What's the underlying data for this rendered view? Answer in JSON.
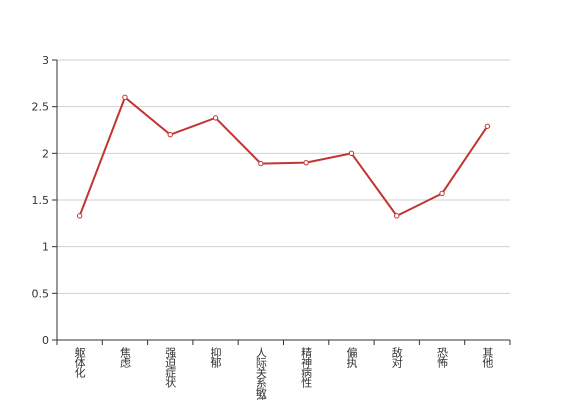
{
  "chart_data": {
    "type": "line",
    "categories": [
      "躯体化",
      "焦虑",
      "强迫症状",
      "抑郁",
      "人际关系敏感",
      "精神病性",
      "偏执",
      "敌对",
      "恐怖",
      "其他"
    ],
    "values": [
      1.33,
      2.6,
      2.2,
      2.38,
      1.89,
      1.9,
      2.0,
      1.33,
      1.57,
      2.29
    ],
    "color": "#c23531",
    "ylim": [
      0,
      3
    ],
    "yticks": [
      0,
      0.5,
      1,
      1.5,
      2,
      2.5,
      3
    ],
    "grid": true
  }
}
